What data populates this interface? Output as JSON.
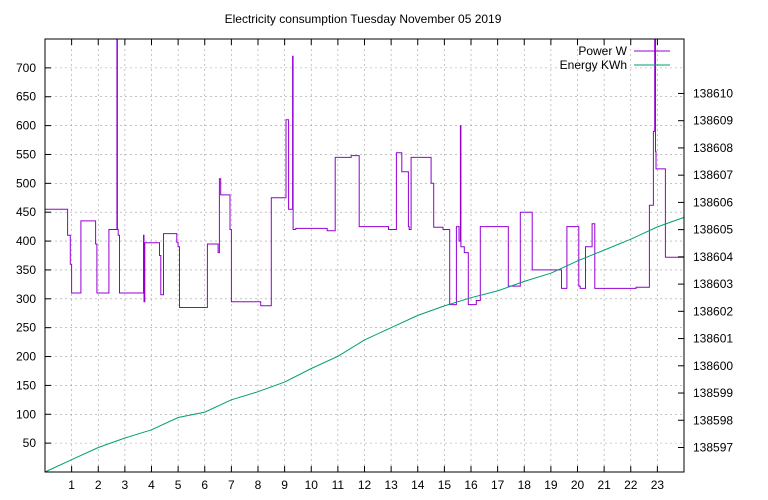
{
  "chart_data": {
    "type": "line",
    "title": "Electricity consumption Tuesday November 05 2019",
    "xlabel": "",
    "ylabel": "",
    "y2label": "",
    "xlim": [
      0,
      24
    ],
    "ylim": [
      0,
      750
    ],
    "y2lim": [
      138596.1,
      138612.0
    ],
    "xticks": [
      1,
      2,
      3,
      4,
      5,
      6,
      7,
      8,
      9,
      10,
      11,
      12,
      13,
      14,
      15,
      16,
      17,
      18,
      19,
      20,
      21,
      22,
      23
    ],
    "yticks": [
      50,
      100,
      150,
      200,
      250,
      300,
      350,
      400,
      450,
      500,
      550,
      600,
      650,
      700
    ],
    "y2ticks": [
      138597,
      138598,
      138599,
      138600,
      138601,
      138602,
      138603,
      138604,
      138605,
      138606,
      138607,
      138608,
      138609,
      138610
    ],
    "grid": true,
    "legend_position": "top-right",
    "colors": {
      "power": "#9400d3",
      "energy": "#009e73"
    },
    "series": [
      {
        "name": "Power W",
        "axis": "left",
        "style": "step",
        "x": [
          0.0,
          0.85,
          0.95,
          1.0,
          1.35,
          1.9,
          1.95,
          2.4,
          2.7,
          2.72,
          2.75,
          2.8,
          2.9,
          3.7,
          3.72,
          3.75,
          4.3,
          4.35,
          4.45,
          4.5,
          4.95,
          5.0,
          5.05,
          6.1,
          6.5,
          6.55,
          6.6,
          6.9,
          6.95,
          7.0,
          8.1,
          8.5,
          8.6,
          9.05,
          9.1,
          9.15,
          9.3,
          9.32,
          9.38,
          9.42,
          10.6,
          10.9,
          11.5,
          11.8,
          12.0,
          12.9,
          13.2,
          13.4,
          13.65,
          13.68,
          13.75,
          14.45,
          14.5,
          14.6,
          14.95,
          15.2,
          15.45,
          15.55,
          15.6,
          15.62,
          15.75,
          15.9,
          16.2,
          16.35,
          17.0,
          17.4,
          17.85,
          18.3,
          18.5,
          18.6,
          19.4,
          19.6,
          20.0,
          20.05,
          20.1,
          20.3,
          20.55,
          20.65,
          21.8,
          22.2,
          22.7,
          22.85,
          22.9,
          22.93,
          22.95,
          23.1,
          23.3,
          24.0
        ],
        "y": [
          455,
          410,
          360,
          310,
          435,
          395,
          310,
          420,
          750,
          420,
          410,
          310,
          310,
          410,
          295,
          397,
          375,
          307,
          413,
          413,
          398,
          390,
          285,
          395,
          380,
          508,
          480,
          480,
          420,
          295,
          288,
          475,
          475,
          610,
          610,
          455,
          720,
          420,
          420,
          422,
          418,
          545,
          548,
          425,
          425,
          420,
          553,
          520,
          425,
          420,
          545,
          545,
          500,
          424,
          420,
          290,
          425,
          400,
          600,
          390,
          380,
          290,
          297,
          425,
          425,
          322,
          450,
          350,
          350,
          350,
          318,
          425,
          425,
          322,
          318,
          390,
          430,
          318,
          318,
          320,
          462,
          590,
          750,
          555,
          525,
          525,
          372,
          372
        ]
      },
      {
        "name": "Energy KWh",
        "axis": "right",
        "style": "line",
        "x": [
          0.0,
          1.0,
          2.0,
          3.0,
          4.0,
          5.0,
          6.0,
          7.0,
          8.0,
          9.0,
          10.0,
          11.0,
          12.0,
          13.0,
          14.0,
          15.0,
          16.0,
          17.0,
          18.0,
          19.0,
          20.0,
          21.0,
          22.0,
          23.0,
          24.0
        ],
        "y": [
          138596.1,
          138596.55,
          138597.0,
          138597.35,
          138597.65,
          138598.1,
          138598.3,
          138598.75,
          138599.05,
          138599.4,
          138599.9,
          138600.35,
          138600.95,
          138601.4,
          138601.85,
          138602.2,
          138602.5,
          138602.75,
          138603.1,
          138603.4,
          138603.85,
          138604.25,
          138604.65,
          138605.1,
          138605.45
        ]
      }
    ]
  }
}
